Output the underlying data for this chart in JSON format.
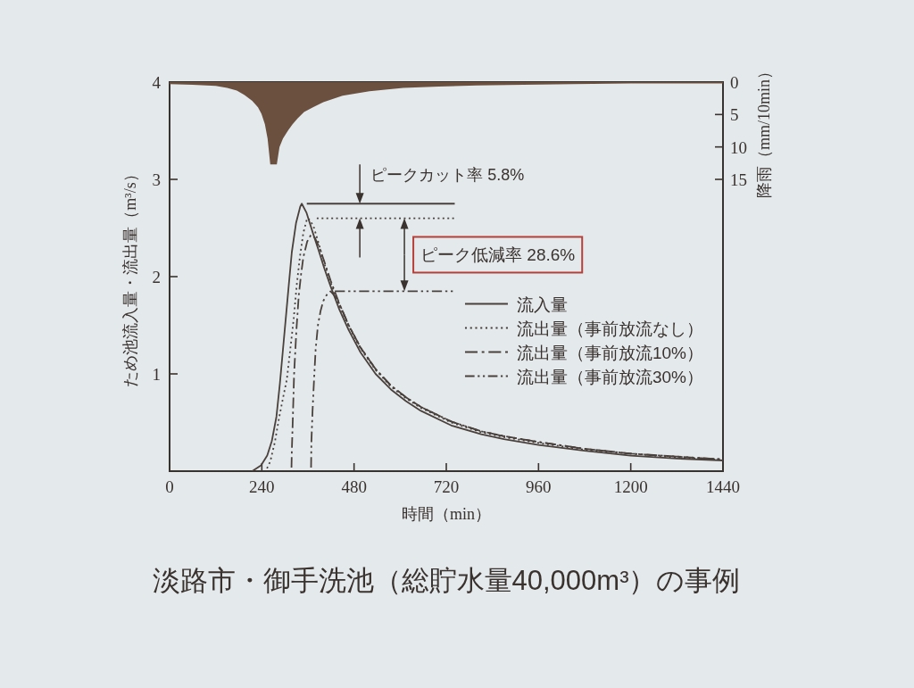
{
  "chart_data": {
    "type": "line",
    "xlabel": "時間（min）",
    "ylabel": "ため池流入量・流出量（m³/s）",
    "y2label": "降雨（mm/10min）",
    "xlim": [
      0,
      1440
    ],
    "xticks": [
      0,
      240,
      480,
      720,
      960,
      1200,
      1440
    ],
    "ylim": [
      0,
      4
    ],
    "yticks": [
      {
        "value": 0,
        "label": null
      },
      1,
      2,
      3,
      4
    ],
    "y2lim": [
      60,
      0
    ],
    "y2ticks": [
      0,
      5,
      10,
      15
    ],
    "legend": "right",
    "series": [
      {
        "type": "area",
        "axis": "y2",
        "color": "#6b5040",
        "x": [
          0,
          60,
          120,
          150,
          175,
          195,
          215,
          230,
          239,
          248,
          255,
          262,
          279,
          286,
          295,
          309,
          320,
          333,
          350,
          373,
          400,
          450,
          520,
          608,
          700,
          800,
          920,
          1050,
          1200,
          1440
        ],
        "values": [
          0.3,
          0.4,
          0.6,
          0.9,
          1.3,
          2.0,
          2.9,
          3.9,
          4.9,
          6.5,
          8.7,
          12.7,
          12.7,
          10,
          8.7,
          7.4,
          6.5,
          5.6,
          4.6,
          3.9,
          3.1,
          2.1,
          1.4,
          0.9,
          0.7,
          0.5,
          0.4,
          0.3,
          0.2,
          0.2
        ]
      },
      {
        "name": "流入量",
        "color": "#4a403c",
        "line_style": "solid",
        "x": [
          215,
          238,
          254,
          266,
          278,
          287,
          295,
          303,
          311,
          318,
          329,
          340,
          344,
          356,
          372,
          387,
          403,
          419,
          442,
          466,
          497,
          536,
          576,
          615,
          654,
          733,
          811,
          870,
          960,
          1080,
          1200,
          1320,
          1440
        ],
        "values": [
          0,
          0.06,
          0.16,
          0.31,
          0.56,
          0.9,
          1.25,
          1.6,
          1.95,
          2.25,
          2.55,
          2.72,
          2.75,
          2.66,
          2.46,
          2.28,
          2.08,
          1.9,
          1.66,
          1.45,
          1.22,
          1.0,
          0.84,
          0.72,
          0.62,
          0.47,
          0.38,
          0.33,
          0.27,
          0.21,
          0.16,
          0.13,
          0.11
        ]
      },
      {
        "name": "流出量（事前放流なし）",
        "color": "#4a403c",
        "line_style": "dotted",
        "x": [
          250,
          262,
          274,
          285,
          295,
          305,
          314,
          323,
          331,
          339,
          348,
          358,
          366,
          376,
          388,
          403,
          419,
          442,
          466,
          497,
          536,
          576,
          615,
          654,
          733,
          811,
          870,
          960,
          1080,
          1200,
          1320,
          1440
        ],
        "values": [
          0,
          0.1,
          0.3,
          0.55,
          0.75,
          0.94,
          1.25,
          1.57,
          1.92,
          2.2,
          2.45,
          2.6,
          2.58,
          2.5,
          2.34,
          2.13,
          1.94,
          1.7,
          1.49,
          1.26,
          1.04,
          0.87,
          0.75,
          0.65,
          0.5,
          0.4,
          0.35,
          0.29,
          0.22,
          0.18,
          0.14,
          0.12
        ]
      },
      {
        "name": "流出量（事前放流10%）",
        "color": "#4a403c",
        "line_style": "dashdot",
        "x": [
          317,
          318,
          320,
          324,
          330,
          336,
          342,
          348,
          358,
          368,
          378,
          390,
          403,
          419,
          442,
          466,
          497,
          536,
          576,
          615,
          654,
          733,
          811,
          870,
          960,
          1080,
          1200,
          1320,
          1440
        ],
        "values": [
          0,
          0.2,
          0.45,
          1.0,
          1.45,
          1.8,
          2.02,
          2.2,
          2.36,
          2.43,
          2.4,
          2.3,
          2.15,
          1.96,
          1.72,
          1.5,
          1.27,
          1.05,
          0.88,
          0.76,
          0.66,
          0.51,
          0.41,
          0.36,
          0.3,
          0.23,
          0.18,
          0.15,
          0.12
        ]
      },
      {
        "name": "流出量（事前放流30%）",
        "color": "#4a403c",
        "line_style": "dashdotdot",
        "x": [
          368,
          369,
          372,
          376,
          380,
          386,
          393,
          400,
          410,
          419,
          430,
          442,
          466,
          497,
          536,
          576,
          615,
          654,
          733,
          811,
          870,
          960,
          1080,
          1200,
          1320,
          1440
        ],
        "values": [
          0,
          0.3,
          0.62,
          0.95,
          1.25,
          1.5,
          1.65,
          1.75,
          1.82,
          1.85,
          1.8,
          1.72,
          1.5,
          1.27,
          1.05,
          0.88,
          0.76,
          0.66,
          0.51,
          0.41,
          0.36,
          0.3,
          0.23,
          0.18,
          0.15,
          0.12
        ]
      },
      {
        "color": "#4a403c",
        "line_style": "solid",
        "x": [
          357,
          742
        ],
        "values": [
          2.75,
          2.75
        ]
      },
      {
        "color": "#4a403c",
        "line_style": "dotted",
        "x": [
          383,
          740
        ],
        "values": [
          2.6,
          2.6
        ]
      },
      {
        "color": "#4a403c",
        "line_style": "dashdotdot",
        "x": [
          430,
          737
        ],
        "values": [
          1.85,
          1.85
        ]
      }
    ],
    "annotations": [
      {
        "text": "ピークカット率 5.8%",
        "x": 495,
        "y": 2.75
      },
      {
        "text": "ピーク低減率 28.6%",
        "x": 611,
        "y": 2.6
      },
      "淡路市・御手洗池（総貯水量40,000m³）の事例"
    ]
  }
}
